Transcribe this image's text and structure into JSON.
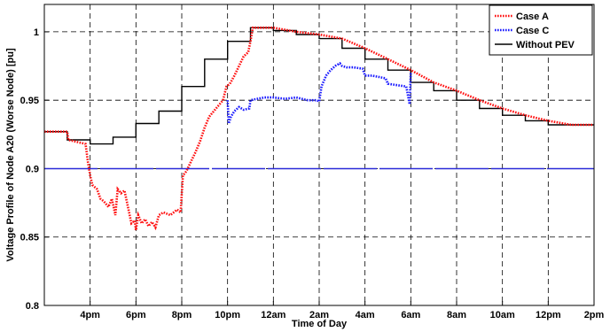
{
  "chart_data": {
    "type": "line",
    "title": "",
    "xlabel": "Time of Day",
    "ylabel": "Voltage Profile of Node A20 (Worse Node) [pu]",
    "x_ticks": [
      "4pm",
      "6pm",
      "8pm",
      "10pm",
      "12am",
      "2am",
      "4am",
      "6am",
      "8am",
      "10am",
      "12pm",
      "2pm"
    ],
    "xlim": [
      2,
      26
    ],
    "ylim": [
      0.8,
      1.02
    ],
    "y_ticks": [
      0.8,
      0.85,
      0.9,
      0.95,
      1
    ],
    "y_tick_labels": [
      "0.8",
      "0.85",
      "0.9",
      "0.95",
      "1"
    ],
    "grid": true,
    "legend_position": "top-right",
    "reference_line": {
      "y": 0.9,
      "color": "#2a2ad8"
    },
    "series": [
      {
        "name": "Case A",
        "color": "#ff1010",
        "style": "dotted",
        "x": [
          2,
          3,
          3.05,
          3.8,
          3.9,
          4.0,
          4.1,
          4.3,
          4.45,
          4.6,
          4.8,
          4.95,
          5.1,
          5.2,
          5.35,
          5.5,
          5.65,
          5.8,
          5.95,
          6.0,
          6.1,
          6.25,
          6.4,
          6.55,
          6.7,
          6.85,
          7.0,
          7.2,
          7.5,
          7.8,
          7.95,
          8.05,
          8.2,
          8.4,
          8.6,
          8.8,
          9.0,
          9.2,
          9.4,
          9.6,
          9.8,
          9.95,
          10.1,
          10.3,
          10.5,
          10.7,
          10.9,
          11.0,
          11.1,
          12,
          13,
          14,
          15,
          16,
          17,
          18,
          19,
          20,
          21,
          22,
          23,
          24,
          25,
          26
        ],
        "y": [
          0.927,
          0.927,
          0.921,
          0.918,
          0.905,
          0.895,
          0.888,
          0.885,
          0.878,
          0.876,
          0.872,
          0.878,
          0.866,
          0.885,
          0.882,
          0.884,
          0.872,
          0.86,
          0.862,
          0.855,
          0.866,
          0.86,
          0.863,
          0.858,
          0.861,
          0.857,
          0.866,
          0.868,
          0.866,
          0.87,
          0.868,
          0.895,
          0.898,
          0.905,
          0.912,
          0.92,
          0.93,
          0.938,
          0.942,
          0.946,
          0.95,
          0.96,
          0.962,
          0.968,
          0.975,
          0.982,
          0.985,
          0.993,
          1.003,
          1.003,
          1.0,
          0.998,
          0.995,
          0.988,
          0.98,
          0.972,
          0.963,
          0.957,
          0.95,
          0.944,
          0.939,
          0.935,
          0.932,
          0.932
        ]
      },
      {
        "name": "Case C",
        "color": "#1a1aff",
        "style": "dotted",
        "x": [
          10,
          10.05,
          10.15,
          10.3,
          10.5,
          10.7,
          10.95,
          11.0,
          11.3,
          11.6,
          12.0,
          12.5,
          13.0,
          13.5,
          13.9,
          14.0,
          14.1,
          14.3,
          14.5,
          14.7,
          14.9,
          15.0,
          15.2,
          15.5,
          15.9,
          16.0,
          16.3,
          16.6,
          16.9,
          17.0,
          17.4,
          17.8,
          17.95,
          18.0
        ],
        "y": [
          0.95,
          0.933,
          0.938,
          0.942,
          0.945,
          0.943,
          0.944,
          0.95,
          0.951,
          0.952,
          0.952,
          0.951,
          0.952,
          0.95,
          0.95,
          0.949,
          0.96,
          0.968,
          0.972,
          0.975,
          0.977,
          0.975,
          0.974,
          0.974,
          0.973,
          0.968,
          0.968,
          0.967,
          0.966,
          0.962,
          0.961,
          0.96,
          0.947,
          0.97
        ]
      },
      {
        "name": "Without PEV",
        "color": "#000000",
        "style": "solid",
        "x": [
          2,
          3,
          3,
          4,
          4,
          5,
          5,
          6,
          6,
          7,
          7,
          8,
          8,
          9,
          9,
          10,
          10,
          11,
          11,
          12,
          12,
          13,
          13,
          14,
          14,
          15,
          15,
          16,
          16,
          17,
          17,
          18,
          18,
          19,
          19,
          20,
          20,
          21,
          21,
          22,
          22,
          23,
          23,
          24,
          24,
          25,
          25,
          26
        ],
        "y": [
          0.927,
          0.927,
          0.921,
          0.921,
          0.918,
          0.918,
          0.923,
          0.923,
          0.933,
          0.933,
          0.942,
          0.942,
          0.96,
          0.96,
          0.98,
          0.98,
          0.993,
          0.993,
          1.003,
          1.003,
          1.001,
          1.001,
          0.998,
          0.998,
          0.995,
          0.995,
          0.988,
          0.988,
          0.98,
          0.98,
          0.972,
          0.972,
          0.963,
          0.963,
          0.957,
          0.957,
          0.95,
          0.95,
          0.944,
          0.944,
          0.939,
          0.939,
          0.935,
          0.935,
          0.932,
          0.932,
          0.932,
          0.932
        ]
      }
    ]
  }
}
